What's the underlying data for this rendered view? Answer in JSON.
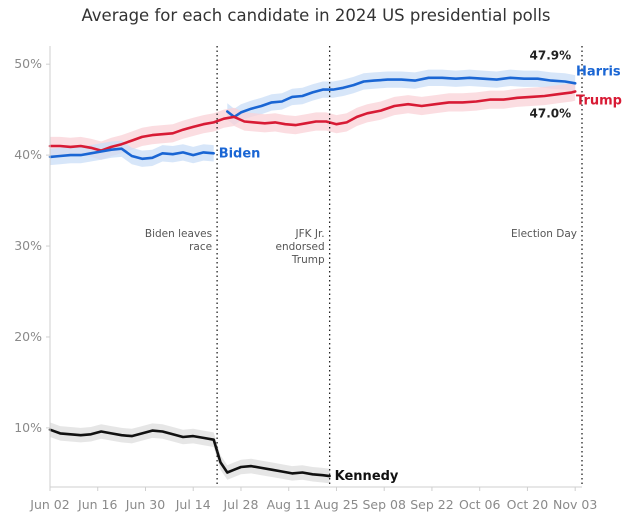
{
  "chart_data": {
    "type": "line",
    "title": "Average for each candidate in 2024 US presidential polls",
    "xlabel": "",
    "ylabel": "",
    "ylim": [
      3.5,
      52
    ],
    "y_ticks": [
      10,
      20,
      30,
      40,
      50
    ],
    "y_tick_labels": [
      "10%",
      "20%",
      "30%",
      "40%",
      "50%"
    ],
    "x_start": "2024-06-02",
    "x_end": "2024-11-05",
    "x_ticks": [
      "2024-06-02",
      "2024-06-16",
      "2024-06-30",
      "2024-07-14",
      "2024-07-28",
      "2024-08-11",
      "2024-08-25",
      "2024-09-08",
      "2024-09-22",
      "2024-10-06",
      "2024-10-20",
      "2024-11-03"
    ],
    "x_tick_labels": [
      "Jun 02",
      "Jun 16",
      "Jun 30",
      "Jul 14",
      "Jul 28",
      "Aug 11",
      "Aug 25",
      "Sep 08",
      "Sep 22",
      "Oct 06",
      "Oct 20",
      "Nov 03"
    ],
    "grid": false,
    "annotations": [
      {
        "date": "2024-07-21",
        "lines": [
          "Biden leaves",
          "race"
        ],
        "y": 31
      },
      {
        "date": "2024-08-23",
        "lines": [
          "JFK Jr.",
          "endorsed",
          "Trump"
        ],
        "y": 31
      },
      {
        "date": "2024-11-05",
        "lines": [
          "Election Day"
        ],
        "y": 31
      }
    ],
    "value_labels": [
      {
        "text": "47.9%",
        "series": "Harris",
        "position": "above"
      },
      {
        "text": "47.0%",
        "series": "Trump",
        "position": "below"
      }
    ],
    "series": [
      {
        "name": "Harris",
        "color": "#1a66d4",
        "band_color": "#c9ddf7",
        "x": [
          "2024-07-24",
          "2024-07-26",
          "2024-07-28",
          "2024-07-31",
          "2024-08-03",
          "2024-08-06",
          "2024-08-09",
          "2024-08-12",
          "2024-08-15",
          "2024-08-18",
          "2024-08-21",
          "2024-08-24",
          "2024-08-27",
          "2024-08-30",
          "2024-09-02",
          "2024-09-05",
          "2024-09-09",
          "2024-09-13",
          "2024-09-17",
          "2024-09-21",
          "2024-09-25",
          "2024-09-29",
          "2024-10-03",
          "2024-10-07",
          "2024-10-11",
          "2024-10-15",
          "2024-10-19",
          "2024-10-23",
          "2024-10-27",
          "2024-10-31",
          "2024-11-03"
        ],
        "y": [
          44.8,
          44.2,
          44.7,
          45.1,
          45.4,
          45.8,
          45.9,
          46.4,
          46.5,
          46.9,
          47.2,
          47.2,
          47.4,
          47.7,
          48.1,
          48.2,
          48.3,
          48.3,
          48.2,
          48.5,
          48.5,
          48.4,
          48.5,
          48.4,
          48.3,
          48.5,
          48.4,
          48.4,
          48.2,
          48.1,
          47.9
        ],
        "band": 0.9
      },
      {
        "name": "Trump",
        "color": "#d81b35",
        "band_color": "#f9d2d7",
        "x": [
          "2024-06-02",
          "2024-06-05",
          "2024-06-08",
          "2024-06-11",
          "2024-06-14",
          "2024-06-17",
          "2024-06-20",
          "2024-06-23",
          "2024-06-26",
          "2024-06-29",
          "2024-07-02",
          "2024-07-05",
          "2024-07-08",
          "2024-07-11",
          "2024-07-14",
          "2024-07-17",
          "2024-07-20",
          "2024-07-23",
          "2024-07-26",
          "2024-07-29",
          "2024-08-01",
          "2024-08-04",
          "2024-08-07",
          "2024-08-10",
          "2024-08-13",
          "2024-08-16",
          "2024-08-19",
          "2024-08-22",
          "2024-08-25",
          "2024-08-28",
          "2024-08-31",
          "2024-09-03",
          "2024-09-07",
          "2024-09-11",
          "2024-09-15",
          "2024-09-19",
          "2024-09-23",
          "2024-09-27",
          "2024-10-01",
          "2024-10-05",
          "2024-10-09",
          "2024-10-13",
          "2024-10-17",
          "2024-10-21",
          "2024-10-25",
          "2024-10-29",
          "2024-11-02",
          "2024-11-03"
        ],
        "y": [
          41.0,
          41.0,
          40.9,
          41.0,
          40.8,
          40.5,
          40.9,
          41.2,
          41.6,
          42.0,
          42.2,
          42.3,
          42.4,
          42.8,
          43.1,
          43.4,
          43.6,
          44.0,
          44.2,
          43.7,
          43.6,
          43.5,
          43.6,
          43.4,
          43.3,
          43.5,
          43.7,
          43.7,
          43.4,
          43.6,
          44.2,
          44.6,
          44.9,
          45.4,
          45.6,
          45.4,
          45.6,
          45.8,
          45.8,
          45.9,
          46.1,
          46.1,
          46.3,
          46.4,
          46.5,
          46.7,
          46.9,
          47.0
        ],
        "band": 1.0
      },
      {
        "name": "Biden",
        "color": "#1a66d4",
        "band_color": "#c9ddf7",
        "x": [
          "2024-06-02",
          "2024-06-05",
          "2024-06-08",
          "2024-06-11",
          "2024-06-14",
          "2024-06-17",
          "2024-06-20",
          "2024-06-23",
          "2024-06-26",
          "2024-06-29",
          "2024-07-02",
          "2024-07-05",
          "2024-07-08",
          "2024-07-11",
          "2024-07-14",
          "2024-07-17",
          "2024-07-20"
        ],
        "y": [
          39.8,
          39.9,
          40.0,
          40.0,
          40.2,
          40.4,
          40.6,
          40.7,
          39.9,
          39.6,
          39.7,
          40.2,
          40.1,
          40.3,
          40.0,
          40.3,
          40.2
        ],
        "band": 0.9
      },
      {
        "name": "Kennedy",
        "color": "#111111",
        "band_color": "#dedede",
        "x": [
          "2024-06-02",
          "2024-06-05",
          "2024-06-08",
          "2024-06-11",
          "2024-06-14",
          "2024-06-17",
          "2024-06-20",
          "2024-06-23",
          "2024-06-26",
          "2024-06-29",
          "2024-07-02",
          "2024-07-05",
          "2024-07-08",
          "2024-07-11",
          "2024-07-14",
          "2024-07-17",
          "2024-07-20",
          "2024-07-22",
          "2024-07-24",
          "2024-07-26",
          "2024-07-28",
          "2024-07-31",
          "2024-08-03",
          "2024-08-06",
          "2024-08-09",
          "2024-08-12",
          "2024-08-15",
          "2024-08-18",
          "2024-08-21",
          "2024-08-23"
        ],
        "y": [
          9.8,
          9.4,
          9.3,
          9.2,
          9.3,
          9.6,
          9.4,
          9.2,
          9.1,
          9.4,
          9.7,
          9.6,
          9.3,
          9.0,
          9.1,
          8.9,
          8.7,
          6.2,
          5.1,
          5.4,
          5.7,
          5.8,
          5.6,
          5.4,
          5.2,
          5.0,
          5.1,
          4.9,
          4.8,
          4.7
        ],
        "band": 0.8
      }
    ]
  }
}
